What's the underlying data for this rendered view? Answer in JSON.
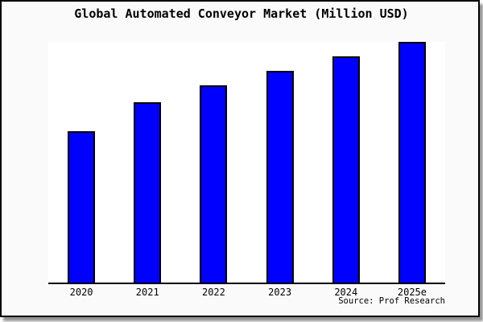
{
  "chart_data": {
    "type": "bar",
    "title": "Global Automated Conveyor Market (Million USD)",
    "categories": [
      "2020",
      "2021",
      "2022",
      "2023",
      "2024",
      "2025e"
    ],
    "values": [
      63,
      75,
      82,
      88,
      94,
      100
    ],
    "value_scale_note": "relative heights as % of tallest (2025e) bar; chart shows no y-axis or value labels",
    "xlabel": "",
    "ylabel": "",
    "ylim": [
      0,
      100
    ],
    "grid": false,
    "legend": false,
    "bar_color": "#0000ff",
    "bar_border_color": "#000000",
    "axis_line_color": "#000000"
  },
  "source": {
    "label": "Source: Prof Research"
  },
  "colors": {
    "page_background": "#fafafa",
    "plot_background": "#ffffff",
    "frame_border": "#000000",
    "text": "#000000",
    "shadow": "#3c3c3c"
  }
}
